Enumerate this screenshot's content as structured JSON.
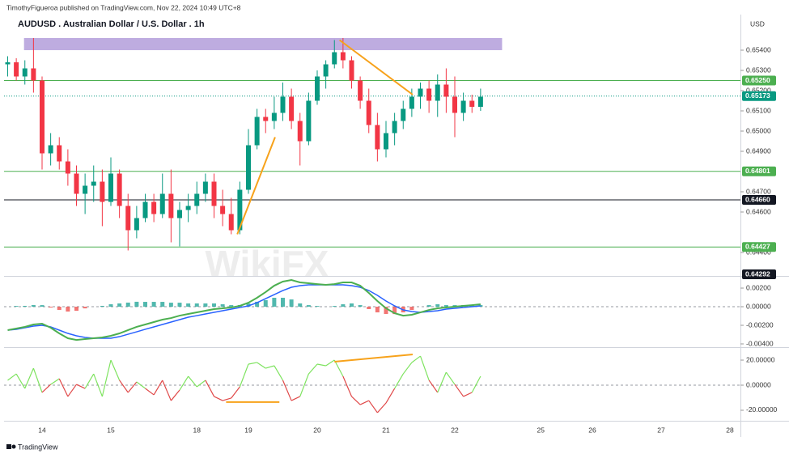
{
  "header": {
    "publisher": "TimothyFigueroa published on TradingView.com, Nov 22, 2024 10:49 UTC+8",
    "symbol": "AUDUSD . Australian Dollar / U.S. Dollar . 1h",
    "currency": "USD"
  },
  "footer": "TradingView",
  "watermark": "WikiFX",
  "chart_data": [
    {
      "type": "candlestick",
      "categories": [
        null,
        null,
        null,
        null,
        "14",
        null,
        null,
        null,
        null,
        null,
        null,
        null,
        "15",
        null,
        null,
        null,
        null,
        null,
        null,
        null,
        null,
        null,
        "18",
        null,
        null,
        null,
        null,
        null,
        "19",
        null,
        null,
        null,
        null,
        null,
        null,
        null,
        "20",
        null,
        null,
        null,
        null,
        null,
        null,
        null,
        "21",
        null,
        null,
        null,
        null,
        null,
        null,
        null,
        "22",
        null,
        null,
        null,
        null,
        null,
        null,
        null,
        null,
        null,
        "25",
        null,
        null,
        null,
        null,
        null,
        "26",
        null,
        null,
        null,
        null,
        null,
        null,
        null,
        "27",
        null,
        null,
        null,
        null,
        null,
        null,
        null,
        "28"
      ],
      "ohlc": [
        [
          0.6533,
          0.6537,
          0.6527,
          0.6534
        ],
        [
          0.6534,
          0.6536,
          0.6525,
          0.6527
        ],
        [
          0.6527,
          0.6535,
          0.6523,
          0.6531
        ],
        [
          0.6531,
          0.6546,
          0.6519,
          0.6525
        ],
        [
          0.6525,
          0.6527,
          0.6481,
          0.6489
        ],
        [
          0.6489,
          0.6499,
          0.6483,
          0.6493
        ],
        [
          0.6493,
          0.6497,
          0.6481,
          0.6485
        ],
        [
          0.6485,
          0.6491,
          0.6473,
          0.6479
        ],
        [
          0.6479,
          0.6483,
          0.6463,
          0.6469
        ],
        [
          0.6469,
          0.6479,
          0.6459,
          0.6473
        ],
        [
          0.6473,
          0.6483,
          0.6465,
          0.6475
        ],
        [
          0.6475,
          0.6481,
          0.6453,
          0.6465
        ],
        [
          0.6465,
          0.6487,
          0.6463,
          0.6479
        ],
        [
          0.6479,
          0.6481,
          0.6457,
          0.6463
        ],
        [
          0.6463,
          0.6469,
          0.6441,
          0.6451
        ],
        [
          0.6451,
          0.6463,
          0.6447,
          0.6457
        ],
        [
          0.6457,
          0.6469,
          0.6455,
          0.6465
        ],
        [
          0.6465,
          0.6469,
          0.6455,
          0.6459
        ],
        [
          0.6459,
          0.6479,
          0.6457,
          0.6469
        ],
        [
          0.6469,
          0.6481,
          0.6445,
          0.6457
        ],
        [
          0.6457,
          0.6465,
          0.6443,
          0.6461
        ],
        [
          0.6461,
          0.6469,
          0.6455,
          0.6463
        ],
        [
          0.6463,
          0.6475,
          0.6459,
          0.6469
        ],
        [
          0.6469,
          0.6479,
          0.6465,
          0.6475
        ],
        [
          0.6475,
          0.6479,
          0.6457,
          0.6463
        ],
        [
          0.6463,
          0.6471,
          0.6453,
          0.6459
        ],
        [
          0.6459,
          0.6467,
          0.6449,
          0.6451
        ],
        [
          0.6451,
          0.6475,
          0.6449,
          0.6471
        ],
        [
          0.6471,
          0.6501,
          0.6469,
          0.6493
        ],
        [
          0.6493,
          0.6511,
          0.6491,
          0.6507
        ],
        [
          0.6507,
          0.6511,
          0.6499,
          0.6505
        ],
        [
          0.6505,
          0.6517,
          0.6501,
          0.6509
        ],
        [
          0.6509,
          0.6524,
          0.6505,
          0.6517
        ],
        [
          0.6517,
          0.6521,
          0.6501,
          0.6505
        ],
        [
          0.6505,
          0.6509,
          0.6483,
          0.6495
        ],
        [
          0.6495,
          0.6519,
          0.6493,
          0.6515
        ],
        [
          0.6515,
          0.653,
          0.6513,
          0.6527
        ],
        [
          0.6527,
          0.6535,
          0.6521,
          0.6533
        ],
        [
          0.6533,
          0.6545,
          0.6531,
          0.6539
        ],
        [
          0.6539,
          0.6546,
          0.6531,
          0.6535
        ],
        [
          0.6535,
          0.6537,
          0.6521,
          0.6525
        ],
        [
          0.6525,
          0.6527,
          0.6511,
          0.6515
        ],
        [
          0.6515,
          0.6521,
          0.6499,
          0.6503
        ],
        [
          0.6503,
          0.6509,
          0.6485,
          0.6491
        ],
        [
          0.6491,
          0.6505,
          0.6487,
          0.6499
        ],
        [
          0.6499,
          0.6509,
          0.6493,
          0.6505
        ],
        [
          0.6505,
          0.6515,
          0.6501,
          0.6511
        ],
        [
          0.6511,
          0.6521,
          0.6507,
          0.6517
        ],
        [
          0.6517,
          0.6524,
          0.6511,
          0.6521
        ],
        [
          0.6521,
          0.6525,
          0.6509,
          0.6515
        ],
        [
          0.6515,
          0.6528,
          0.6507,
          0.6523
        ],
        [
          0.6523,
          0.6531,
          0.6509,
          0.6517
        ],
        [
          0.6517,
          0.6527,
          0.6497,
          0.6509
        ],
        [
          0.6509,
          0.6519,
          0.6505,
          0.6515
        ],
        [
          0.6515,
          0.6518,
          0.6509,
          0.6512
        ],
        [
          0.6512,
          0.6521,
          0.651,
          0.6517
        ],
        null,
        null,
        null,
        null,
        null,
        null,
        null,
        null,
        null,
        null,
        null,
        null,
        null,
        null,
        null,
        null,
        null,
        null,
        null,
        null,
        null,
        null,
        null,
        null,
        null,
        null,
        null,
        null,
        null
      ],
      "up_color": "#089981",
      "down_color": "#f23645",
      "ylim": [
        0.64288,
        0.65576
      ],
      "yticks": [
        {
          "value": 0.654,
          "label": "0.65400"
        },
        {
          "value": 0.653,
          "label": "0.65300"
        },
        {
          "value": 0.652,
          "label": "0.65200"
        },
        {
          "value": 0.651,
          "label": "0.65100"
        },
        {
          "value": 0.65,
          "label": "0.65000"
        },
        {
          "value": 0.649,
          "label": "0.64900"
        },
        {
          "value": 0.647,
          "label": "0.64700"
        },
        {
          "value": 0.646,
          "label": "0.64600"
        },
        {
          "value": 0.644,
          "label": "0.64400"
        }
      ],
      "levels": [
        {
          "value": 0.6525,
          "label": "0.65250",
          "color": "#4caf50",
          "style": "solid"
        },
        {
          "value": 0.65173,
          "label": "0.65173",
          "color": "#089981",
          "style": "dotted"
        },
        {
          "value": 0.64801,
          "label": "0.64801",
          "color": "#4caf50",
          "style": "solid"
        },
        {
          "value": 0.6466,
          "label": "0.64660",
          "color": "#131722",
          "style": "solid"
        },
        {
          "value": 0.64427,
          "label": "0.64427",
          "color": "#4caf50",
          "style": "solid"
        },
        {
          "value": 0.64292,
          "label": "0.64292",
          "color": "#131722",
          "style": "none"
        }
      ],
      "zone": {
        "x": [
          1.9,
          57.5
        ],
        "y": [
          0.654,
          0.6546
        ],
        "color": "#b39ddb"
      },
      "lines": [
        {
          "color": "#f7a21b",
          "x": [
            26.7,
            31.1
          ],
          "y": [
            0.6449,
            0.6497
          ]
        },
        {
          "color": "#f7a21b",
          "x": [
            38.6,
            47.1
          ],
          "y": [
            0.6545,
            0.6518
          ]
        }
      ]
    },
    {
      "type": "macd",
      "ylim": [
        -0.00426,
        0.00322
      ],
      "yticks": [
        {
          "value": 0.002,
          "label": "0.00200"
        },
        {
          "value": 0,
          "label": "0.00000"
        },
        {
          "value": -0.002,
          "label": "-0.00200"
        },
        {
          "value": -0.004,
          "label": "-0.00400"
        }
      ],
      "series": [
        {
          "color": "#4caf50",
          "values": [
            -0.00252,
            -0.00235,
            -0.00217,
            -0.00191,
            -0.00183,
            -0.00226,
            -0.00287,
            -0.00339,
            -0.00357,
            -0.00348,
            -0.00339,
            -0.0033,
            -0.00313,
            -0.00287,
            -0.00252,
            -0.00217,
            -0.00191,
            -0.00165,
            -0.00139,
            -0.00122,
            -0.00096,
            -0.00078,
            -0.00061,
            -0.00043,
            -0.00026,
            -0.00017,
            -9e-05,
            9e-05,
            0.00043,
            0.00096,
            0.00157,
            0.00226,
            0.0027,
            0.00287,
            0.00261,
            0.00252,
            0.00243,
            0.00235,
            0.00243,
            0.00261,
            0.00261,
            0.00226,
            0.00148,
            0.00061,
            -0.00017,
            -0.0007,
            -0.00096,
            -0.00087,
            -0.00061,
            -0.00035,
            -0.00017,
            -9e-05,
            0,
            9e-05,
            0.00017,
            0.00026
          ]
        },
        {
          "color": "#2962ff",
          "values": [
            -0.00252,
            -0.00243,
            -0.00226,
            -0.00209,
            -0.002,
            -0.00217,
            -0.00252,
            -0.00287,
            -0.00313,
            -0.0033,
            -0.00339,
            -0.00339,
            -0.00339,
            -0.00322,
            -0.00296,
            -0.0027,
            -0.00243,
            -0.00217,
            -0.00191,
            -0.00165,
            -0.00139,
            -0.00113,
            -0.00096,
            -0.00078,
            -0.00061,
            -0.00043,
            -0.00026,
            -9e-05,
            9e-05,
            0.00043,
            0.00087,
            0.0013,
            0.00174,
            0.00209,
            0.00226,
            0.00235,
            0.00235,
            0.00235,
            0.00235,
            0.00235,
            0.00226,
            0.00209,
            0.00174,
            0.00122,
            0.00061,
            9e-05,
            -0.00035,
            -0.00052,
            -0.00061,
            -0.00052,
            -0.00043,
            -0.00026,
            -0.00017,
            -9e-05,
            0,
            9e-05
          ]
        }
      ],
      "histogram": {
        "up_color": "#26a69a",
        "down_color": "#ef5350",
        "values": [
          0,
          8e-05,
          9e-05,
          0.00018,
          0.00017,
          -9e-05,
          -0.00035,
          -0.00052,
          -0.00044,
          -0.00018,
          0,
          9e-05,
          0.00026,
          0.00035,
          0.00044,
          0.00053,
          0.00052,
          0.00052,
          0.00052,
          0.00043,
          0.00043,
          0.00035,
          0.00035,
          0.00035,
          0.00035,
          0.00026,
          0.00017,
          0.00018,
          0.00034,
          0.00053,
          0.0007,
          0.00096,
          0.00096,
          0.00078,
          0.00035,
          0.00017,
          8e-05,
          0,
          8e-05,
          0.00026,
          0.00035,
          0.00017,
          -0.00026,
          -0.00061,
          -0.00078,
          -0.00079,
          -0.00061,
          -0.00035,
          0,
          0.00017,
          0.00026,
          0.00017,
          0.00017,
          0.00018,
          0.00017,
          0.00017
        ]
      }
    },
    {
      "type": "oscillator",
      "ylim": [
        -27.1,
        28.4
      ],
      "yticks": [
        {
          "value": 20,
          "label": "20.00000"
        },
        {
          "value": 0,
          "label": "0.00000"
        },
        {
          "value": -20,
          "label": "-20.00000"
        }
      ],
      "up_color": "#7ee35f",
      "down_color": "#e04848",
      "values": [
        3.9,
        9,
        -2.6,
        13.5,
        -5.8,
        0.6,
        5.2,
        -9,
        0.6,
        -2.6,
        9,
        -9,
        20,
        3.9,
        -5.8,
        2.6,
        -2.6,
        -7.7,
        3.9,
        -12.3,
        -3.9,
        7.1,
        -1.3,
        3.9,
        -9,
        -12.3,
        -10.3,
        -1.3,
        16.8,
        18.1,
        13.5,
        15.5,
        3.9,
        -12.3,
        -9,
        9,
        16.8,
        15.5,
        20,
        7.1,
        -9,
        -15.5,
        -12.3,
        -21.9,
        -14.2,
        -2.6,
        9,
        18.1,
        23.2,
        3.9,
        -5.8,
        10.3,
        0.6,
        -9,
        -5.8,
        7.1
      ],
      "lines": [
        {
          "color": "#f7a21b",
          "x": [
            25.4,
            31.6
          ],
          "y": [
            -13.5,
            -13.5
          ]
        },
        {
          "color": "#f7a21b",
          "x": [
            38,
            47.1
          ],
          "y": [
            18.7,
            24.5
          ]
        }
      ]
    }
  ]
}
